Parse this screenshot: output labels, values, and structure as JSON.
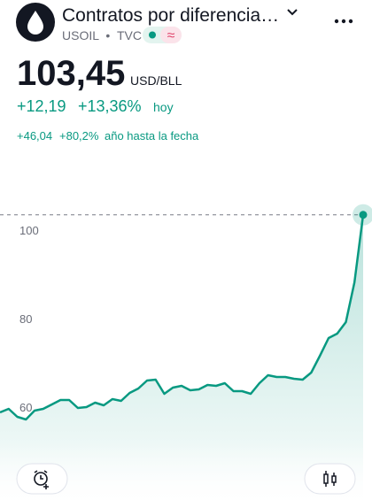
{
  "header": {
    "title": "Contratos por diferencia…",
    "symbol": "USOIL",
    "separator": "•",
    "exchange": "TVC",
    "badge": "≈"
  },
  "price": {
    "value": "103,45",
    "unit": "USD/BLL"
  },
  "change_day": {
    "abs": "+12,19",
    "pct": "+13,36%",
    "period": "hoy"
  },
  "change_ytd": {
    "abs": "+46,04",
    "pct": "+80,2%",
    "period": "año hasta la fecha"
  },
  "chart_data": {
    "type": "line",
    "color": "#089981",
    "values": [
      58.8,
      59.6,
      57.8,
      57.2,
      59.2,
      59.6,
      60.6,
      61.6,
      61.6,
      59.8,
      60,
      61,
      60.4,
      61.8,
      61.4,
      63.2,
      64.2,
      66,
      66.2,
      63,
      64.4,
      64.8,
      63.8,
      64,
      65,
      64.8,
      65.4,
      63.6,
      63.6,
      63,
      65.4,
      67.2,
      66.8,
      66.8,
      66.4,
      66.2,
      67.8,
      71.6,
      75.6,
      76.6,
      79.2,
      88.2,
      103.45
    ],
    "ylim": [
      48,
      112
    ],
    "yticks": [
      60,
      80,
      100
    ],
    "grid": false
  }
}
